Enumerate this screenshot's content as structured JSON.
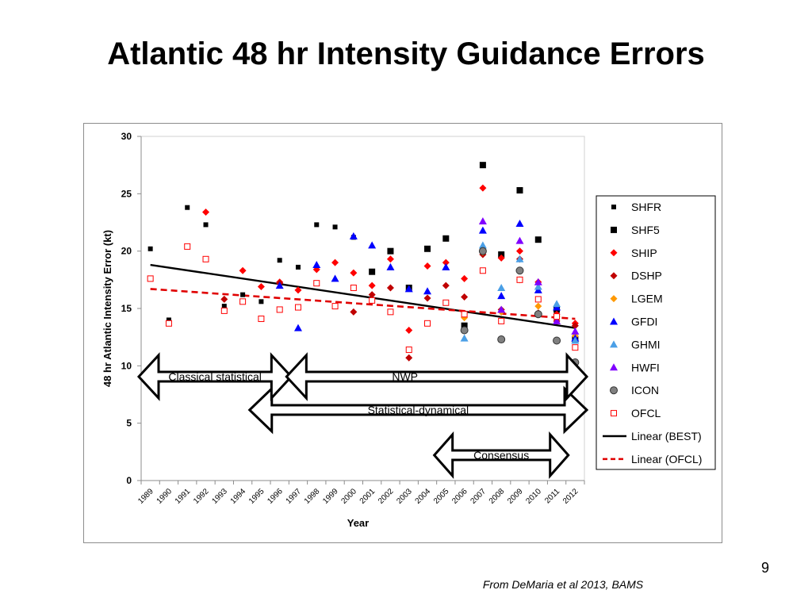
{
  "slide": {
    "title": "Atlantic 48 hr Intensity Guidance Errors",
    "page_number": "9",
    "citation": "From DeMaria et al 2013, BAMS"
  },
  "chart_data": {
    "type": "scatter",
    "xlabel": "Year",
    "ylabel": "48 hr Atlantic Intensity Error (kt)",
    "x": [
      "1989",
      "1990",
      "1991",
      "1992",
      "1993",
      "1994",
      "1995",
      "1996",
      "1997",
      "1998",
      "1999",
      "2000",
      "2001",
      "2002",
      "2003",
      "2004",
      "2005",
      "2006",
      "2007",
      "2008",
      "2009",
      "2010",
      "2011",
      "2012"
    ],
    "ylim": [
      0,
      30
    ],
    "yticks": [
      0,
      5,
      10,
      15,
      20,
      25,
      30
    ],
    "grid": false,
    "legend_position": "right",
    "series": [
      {
        "name": "SHFR",
        "marker": "small-square",
        "color": "#000000",
        "points": [
          [
            1989,
            20.2
          ],
          [
            1990,
            14.0
          ],
          [
            1991,
            23.8
          ],
          [
            1992,
            22.3
          ],
          [
            1993,
            15.2
          ],
          [
            1994,
            16.2
          ],
          [
            1995,
            15.6
          ],
          [
            1996,
            19.2
          ],
          [
            1997,
            18.6
          ],
          [
            1998,
            22.3
          ],
          [
            1999,
            22.1
          ],
          [
            2000,
            21.2
          ],
          [
            2001,
            18.2
          ],
          [
            2002,
            20.0
          ],
          [
            2003,
            16.8
          ],
          [
            2004,
            20.2
          ],
          [
            2005,
            21.1
          ],
          [
            2006,
            13.5
          ]
        ]
      },
      {
        "name": "SHF5",
        "marker": "square",
        "color": "#000000",
        "points": [
          [
            2001,
            18.2
          ],
          [
            2002,
            20.0
          ],
          [
            2003,
            16.8
          ],
          [
            2004,
            20.2
          ],
          [
            2005,
            21.1
          ],
          [
            2006,
            13.5
          ],
          [
            2007,
            27.5
          ],
          [
            2008,
            19.7
          ],
          [
            2009,
            25.3
          ],
          [
            2010,
            21.0
          ],
          [
            2011,
            14.9
          ],
          [
            2012,
            12.3
          ]
        ]
      },
      {
        "name": "SHIP",
        "marker": "diamond",
        "color": "#ff0000",
        "points": [
          [
            1992,
            23.4
          ],
          [
            1994,
            18.3
          ],
          [
            1995,
            16.9
          ],
          [
            1996,
            17.3
          ],
          [
            1997,
            16.6
          ],
          [
            1998,
            18.4
          ],
          [
            1999,
            19.0
          ],
          [
            2000,
            18.1
          ],
          [
            2001,
            17.0
          ],
          [
            2002,
            19.3
          ],
          [
            2003,
            13.1
          ],
          [
            2004,
            18.7
          ],
          [
            2005,
            19.0
          ],
          [
            2006,
            17.6
          ],
          [
            2007,
            25.5
          ],
          [
            2008,
            19.4
          ],
          [
            2009,
            20.0
          ],
          [
            2010,
            17.3
          ],
          [
            2011,
            14.5
          ],
          [
            2012,
            13.7
          ]
        ]
      },
      {
        "name": "DSHP",
        "marker": "diamond",
        "color": "#c00000",
        "points": [
          [
            1993,
            15.8
          ],
          [
            1996,
            17.2
          ],
          [
            2000,
            14.7
          ],
          [
            2001,
            16.2
          ],
          [
            2002,
            16.8
          ],
          [
            2003,
            10.7
          ],
          [
            2004,
            15.9
          ],
          [
            2005,
            17.0
          ],
          [
            2006,
            16.0
          ],
          [
            2007,
            19.7
          ],
          [
            2008,
            14.9
          ],
          [
            2009,
            19.3
          ],
          [
            2010,
            14.6
          ],
          [
            2011,
            13.9
          ],
          [
            2012,
            13.5
          ]
        ]
      },
      {
        "name": "LGEM",
        "marker": "diamond",
        "color": "#ff9900",
        "points": [
          [
            2006,
            14.2
          ],
          [
            2007,
            19.9
          ],
          [
            2008,
            14.7
          ],
          [
            2009,
            17.5
          ],
          [
            2010,
            15.2
          ],
          [
            2011,
            14.3
          ],
          [
            2012,
            12.6
          ]
        ]
      },
      {
        "name": "GFDI",
        "marker": "triangle",
        "color": "#0000ff",
        "points": [
          [
            1996,
            17.0
          ],
          [
            1997,
            13.3
          ],
          [
            1998,
            18.8
          ],
          [
            1999,
            17.6
          ],
          [
            2000,
            21.3
          ],
          [
            2001,
            20.5
          ],
          [
            2002,
            18.6
          ],
          [
            2003,
            16.7
          ],
          [
            2004,
            16.5
          ],
          [
            2005,
            18.6
          ],
          [
            2007,
            21.8
          ],
          [
            2008,
            16.1
          ],
          [
            2009,
            22.4
          ],
          [
            2010,
            16.6
          ],
          [
            2011,
            15.1
          ],
          [
            2012,
            12.4
          ]
        ]
      },
      {
        "name": "GHMI",
        "marker": "triangle",
        "color": "#4a9fe6",
        "points": [
          [
            2006,
            12.4
          ],
          [
            2007,
            20.5
          ],
          [
            2008,
            16.8
          ],
          [
            2009,
            19.3
          ],
          [
            2010,
            16.9
          ],
          [
            2011,
            15.4
          ],
          [
            2012,
            12.2
          ]
        ]
      },
      {
        "name": "HWFI",
        "marker": "triangle",
        "color": "#8000ff",
        "points": [
          [
            2007,
            22.6
          ],
          [
            2008,
            14.9
          ],
          [
            2009,
            20.9
          ],
          [
            2010,
            17.3
          ],
          [
            2011,
            13.9
          ],
          [
            2012,
            13.0
          ]
        ]
      },
      {
        "name": "ICON",
        "marker": "circle",
        "color": "#808080",
        "points": [
          [
            2006,
            13.1
          ],
          [
            2007,
            20.0
          ],
          [
            2008,
            12.3
          ],
          [
            2009,
            18.3
          ],
          [
            2010,
            14.5
          ],
          [
            2011,
            12.2
          ],
          [
            2012,
            10.3
          ]
        ]
      },
      {
        "name": "OFCL",
        "marker": "open-square",
        "color": "#ff0000",
        "points": [
          [
            1989,
            17.6
          ],
          [
            1990,
            13.7
          ],
          [
            1991,
            20.4
          ],
          [
            1992,
            19.3
          ],
          [
            1993,
            14.8
          ],
          [
            1994,
            15.6
          ],
          [
            1995,
            14.1
          ],
          [
            1996,
            14.9
          ],
          [
            1997,
            15.1
          ],
          [
            1998,
            17.2
          ],
          [
            1999,
            15.2
          ],
          [
            2000,
            16.8
          ],
          [
            2001,
            15.7
          ],
          [
            2002,
            14.7
          ],
          [
            2003,
            11.4
          ],
          [
            2004,
            13.7
          ],
          [
            2005,
            15.5
          ],
          [
            2006,
            14.5
          ],
          [
            2007,
            18.3
          ],
          [
            2008,
            13.9
          ],
          [
            2009,
            17.5
          ],
          [
            2010,
            15.8
          ],
          [
            2011,
            14.3
          ],
          [
            2012,
            11.6
          ]
        ]
      },
      {
        "name": "Linear (BEST)",
        "type": "line",
        "style": "solid",
        "color": "#000000",
        "points": [
          [
            1989,
            18.8
          ],
          [
            2012,
            13.3
          ]
        ]
      },
      {
        "name": "Linear (OFCL)",
        "type": "line",
        "style": "dashed",
        "color": "#e00000",
        "points": [
          [
            1989,
            16.7
          ],
          [
            2012,
            14.1
          ]
        ]
      }
    ],
    "annotations": [
      {
        "label": "Classical statistical",
        "from": 1989,
        "to": 1996
      },
      {
        "label": "NWP",
        "from": 1997,
        "to": 2012
      },
      {
        "label": "Statistical-dynamical",
        "from": 1995,
        "to": 2012
      },
      {
        "label": "Consensus",
        "from": 2005,
        "to": 2011
      }
    ]
  }
}
